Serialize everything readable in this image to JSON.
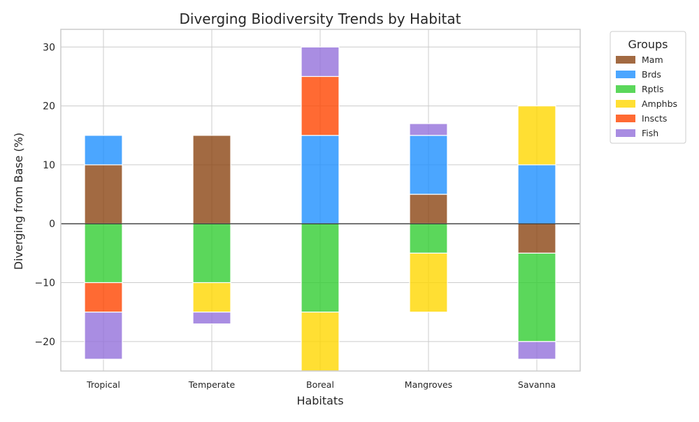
{
  "chart_data": {
    "type": "bar",
    "stacked": "diverging",
    "title": "Diverging Biodiversity Trends by Habitat",
    "xlabel": "Habitats",
    "ylabel": "Diverging from Base (%)",
    "ylim": [
      -25,
      33
    ],
    "yticks": [
      -20,
      -10,
      0,
      10,
      20,
      30
    ],
    "grid": true,
    "legend": {
      "title": "Groups",
      "placement": "outside-top-right"
    },
    "categories": [
      "Tropical",
      "Temperate",
      "Boreal",
      "Mangroves",
      "Savanna"
    ],
    "series": [
      {
        "name": "Mam",
        "color": "#8B4513",
        "values": [
          10,
          15,
          0,
          5,
          -5
        ]
      },
      {
        "name": "Brds",
        "color": "#1E90FF",
        "values": [
          5,
          0,
          15,
          10,
          10
        ]
      },
      {
        "name": "Rptls",
        "color": "#32CD32",
        "values": [
          -10,
          -10,
          -15,
          -5,
          -15
        ]
      },
      {
        "name": "Amphbs",
        "color": "#FFD700",
        "values": [
          0,
          -5,
          -10,
          -10,
          10
        ]
      },
      {
        "name": "Inscts",
        "color": "#FF4500",
        "values": [
          -5,
          0,
          10,
          0,
          0
        ]
      },
      {
        "name": "Fish",
        "color": "#9370DB",
        "values": [
          -8,
          -2,
          5,
          2,
          -3
        ]
      }
    ]
  }
}
